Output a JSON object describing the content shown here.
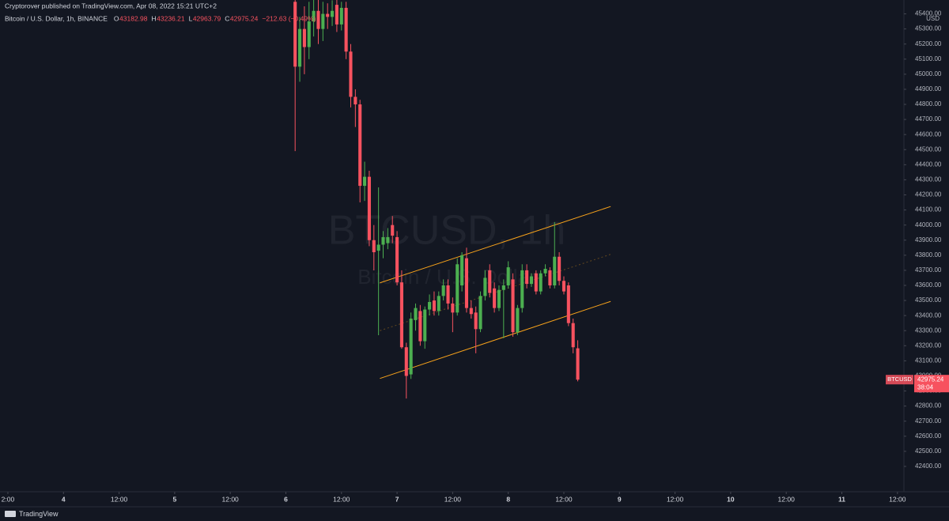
{
  "header": "Cryptorover published on TradingView.com, Apr 08, 2022 15:21 UTC+2",
  "footer": "TradingView",
  "chart_data": {
    "type": "candlestick",
    "symbol_title": "Bitcoin / U.S. Dollar, 1h, BINANCE",
    "legend": [
      {
        "label": "O",
        "value": 43182.98
      },
      {
        "label": "H",
        "value": 43236.21
      },
      {
        "label": "L",
        "value": 42963.79
      },
      {
        "label": "C",
        "value": 42975.24
      }
    ],
    "change": "−212.63 (−0.49%)",
    "watermark": "BTCUSD, 1h",
    "watermark_sub": "Bitcoin / U.S. Dollar",
    "currency": "USD",
    "up_color": "#4caf50",
    "down_color": "#f7525f",
    "channel_color": "#f7a21b",
    "x": [
      50,
      51,
      52,
      53,
      54,
      55,
      56,
      57,
      58,
      59,
      60,
      61,
      62,
      63,
      64,
      65,
      66,
      67,
      68,
      69,
      70,
      71,
      72,
      73,
      74,
      75,
      76,
      77,
      78,
      79,
      80,
      81,
      82,
      83,
      84,
      85,
      86,
      87,
      88,
      89,
      90,
      91,
      92,
      93,
      94,
      95,
      96,
      97,
      98,
      99,
      100,
      101,
      102,
      103,
      104,
      105,
      106,
      107,
      108,
      109,
      110,
      111
    ],
    "open": [
      45480,
      45050,
      45300,
      45180,
      45350,
      45420,
      45300,
      45400,
      45380,
      45460,
      45330,
      45440,
      45150,
      44850,
      44800,
      44260,
      44320,
      43900,
      43830,
      43870,
      43880,
      44000,
      43920,
      43620,
      43190,
      43010,
      43370,
      43430,
      43230,
      43440,
      43500,
      43430,
      43530,
      43600,
      43480,
      43420,
      43600,
      43780,
      43450,
      43420,
      43310,
      43530,
      43700,
      43580,
      43450,
      43570,
      43600,
      43640,
      43290,
      43450,
      43700,
      43610,
      43680,
      43560,
      43680,
      43700,
      43600,
      43790,
      43630,
      43600,
      43350,
      43182.98
    ],
    "high": [
      45560,
      45380,
      45450,
      45480,
      45500,
      45520,
      45480,
      45470,
      45490,
      45510,
      45480,
      45480,
      45200,
      44900,
      44830,
      44420,
      44360,
      44000,
      44250,
      43960,
      43980,
      44060,
      43960,
      43700,
      43220,
      43420,
      43480,
      43470,
      43460,
      43540,
      43560,
      43560,
      43640,
      43640,
      43520,
      43780,
      43820,
      43850,
      43500,
      43460,
      43560,
      43700,
      43740,
      43620,
      43600,
      43640,
      43760,
      43680,
      43470,
      43740,
      43740,
      43680,
      43700,
      43700,
      43740,
      43720,
      44020,
      43820,
      43660,
      43620,
      43380,
      43236.21
    ],
    "low": [
      44490,
      44950,
      45000,
      45100,
      45250,
      45200,
      45220,
      45300,
      45320,
      45280,
      45290,
      45100,
      44780,
      44650,
      44150,
      44160,
      43860,
      43700,
      43270,
      43780,
      43840,
      43880,
      43600,
      43180,
      42850,
      42980,
      43300,
      43200,
      43180,
      43400,
      43400,
      43400,
      43500,
      43440,
      43290,
      43400,
      43560,
      43420,
      43380,
      43150,
      43290,
      43500,
      43520,
      43420,
      43430,
      43250,
      43580,
      43260,
      43270,
      43420,
      43580,
      43590,
      43540,
      43540,
      43660,
      43580,
      43580,
      43600,
      43540,
      43330,
      43150,
      42963.79
    ],
    "close": [
      45050,
      45300,
      45180,
      45350,
      45420,
      45300,
      45400,
      45380,
      45420,
      45330,
      45440,
      45150,
      44850,
      44800,
      44260,
      44320,
      43900,
      43820,
      43870,
      43920,
      43920,
      43930,
      43620,
      43190,
      43000,
      43380,
      43450,
      43230,
      43440,
      43490,
      43430,
      43530,
      43600,
      43480,
      43420,
      43740,
      43800,
      43450,
      43410,
      43310,
      43530,
      43650,
      43550,
      43450,
      43570,
      43600,
      43720,
      43290,
      43450,
      43700,
      43610,
      43660,
      43560,
      43680,
      43710,
      43600,
      43790,
      43630,
      43560,
      43350,
      43190,
      42975.24
    ],
    "channel": [
      {
        "x": [
          68.3,
          118.1
        ],
        "y": [
          43617,
          44123
        ]
      },
      {
        "x": [
          68.3,
          118.1
        ],
        "y": [
          42983,
          43494
        ]
      },
      {
        "x": [
          68.3,
          118.1
        ],
        "y": [
          43300,
          43806
        ],
        "dashed": true
      }
    ],
    "last_price": {
      "label": "BTCUSD",
      "value": 42975.24,
      "countdown": "38:04"
    },
    "xlim": [
      -13.7,
      181.4
    ],
    "ylim": [
      42232,
      45492
    ],
    "xticks": [
      {
        "value": -12,
        "label": "2:00"
      },
      {
        "value": 0,
        "label": "4"
      },
      {
        "value": 12,
        "label": "12:00"
      },
      {
        "value": 24,
        "label": "5"
      },
      {
        "value": 36,
        "label": "12:00"
      },
      {
        "value": 48,
        "label": "6"
      },
      {
        "value": 60,
        "label": "12:00"
      },
      {
        "value": 72,
        "label": "7"
      },
      {
        "value": 84,
        "label": "12:00"
      },
      {
        "value": 96,
        "label": "8"
      },
      {
        "value": 108,
        "label": "12:00"
      },
      {
        "value": 120,
        "label": "9"
      },
      {
        "value": 132,
        "label": "12:00"
      },
      {
        "value": 144,
        "label": "10"
      },
      {
        "value": 156,
        "label": "12:00"
      },
      {
        "value": 168,
        "label": "11"
      },
      {
        "value": 180,
        "label": "12:00"
      }
    ],
    "yticks": [
      {
        "value": 45400,
        "label": "45400.00"
      },
      {
        "value": 45300,
        "label": "45300.00"
      },
      {
        "value": 45200,
        "label": "45200.00"
      },
      {
        "value": 45100,
        "label": "45100.00"
      },
      {
        "value": 45000,
        "label": "45000.00"
      },
      {
        "value": 44900,
        "label": "44900.00"
      },
      {
        "value": 44800,
        "label": "44800.00"
      },
      {
        "value": 44700,
        "label": "44700.00"
      },
      {
        "value": 44600,
        "label": "44600.00"
      },
      {
        "value": 44500,
        "label": "44500.00"
      },
      {
        "value": 44400,
        "label": "44400.00"
      },
      {
        "value": 44300,
        "label": "44300.00"
      },
      {
        "value": 44200,
        "label": "44200.00"
      },
      {
        "value": 44100,
        "label": "44100.00"
      },
      {
        "value": 44000,
        "label": "44000.00"
      },
      {
        "value": 43900,
        "label": "43900.00"
      },
      {
        "value": 43800,
        "label": "43800.00"
      },
      {
        "value": 43700,
        "label": "43700.00"
      },
      {
        "value": 43600,
        "label": "43600.00"
      },
      {
        "value": 43500,
        "label": "43500.00"
      },
      {
        "value": 43400,
        "label": "43400.00"
      },
      {
        "value": 43300,
        "label": "43300.00"
      },
      {
        "value": 43200,
        "label": "43200.00"
      },
      {
        "value": 43100,
        "label": "43100.00"
      },
      {
        "value": 43000,
        "label": "43000.00"
      },
      {
        "value": 42900,
        "label": "42900.00"
      },
      {
        "value": 42800,
        "label": "42800.00"
      },
      {
        "value": 42700,
        "label": "42700.00"
      },
      {
        "value": 42600,
        "label": "42600.00"
      },
      {
        "value": 42500,
        "label": "42500.00"
      },
      {
        "value": 42400,
        "label": "42400.00"
      }
    ]
  }
}
